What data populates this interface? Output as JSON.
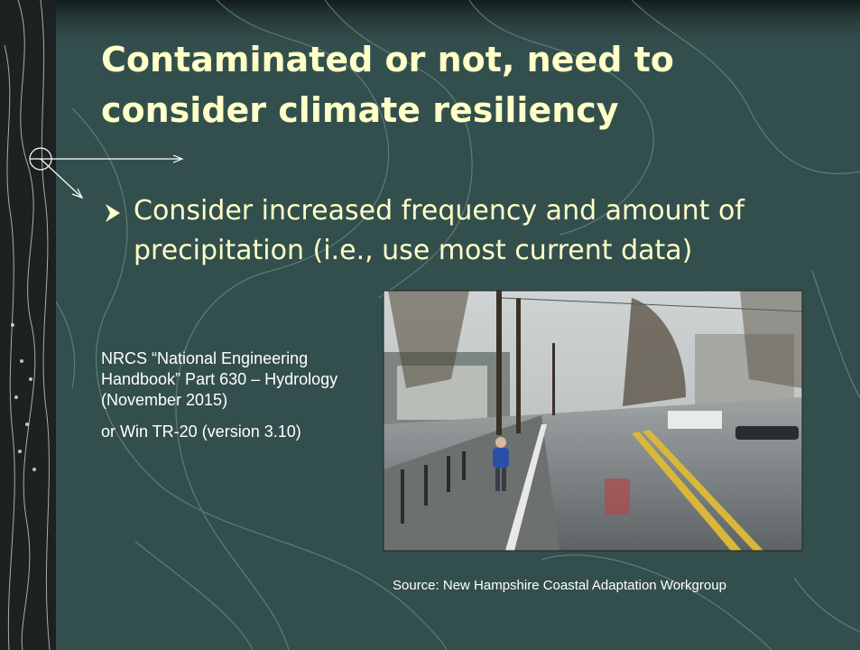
{
  "title_lines": [
    "Contaminated or not, need to",
    "consider climate resiliency"
  ],
  "bullet_lines": [
    "Consider increased frequency and amount of",
    "precipitation (i.e., use most current data)"
  ],
  "notes": [
    "NRCS “National Engineering Handbook” Part 630 – Hydrology (November 2015)",
    "or Win TR-20 (version 3.10)"
  ],
  "photo_caption": "Source: New Hampshire Coastal Adaptation Workgroup"
}
